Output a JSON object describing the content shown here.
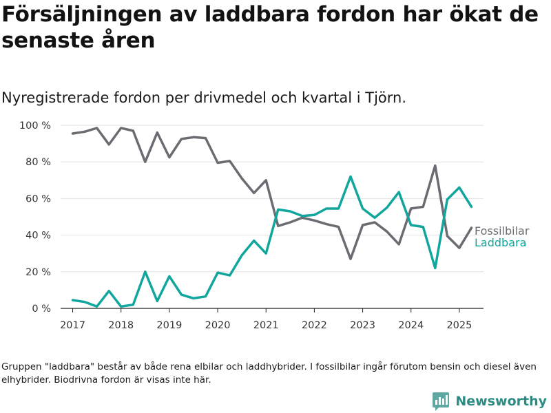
{
  "header": {
    "title": "Försäljningen av laddbara fordon har ökat de senaste åren",
    "subtitle": "Nyregistrerade fordon per drivmedel och kvartal i Tjörn."
  },
  "footer": {
    "note": "Gruppen \"laddbara\" består av både rena elbilar och laddhybrider. I fossilbilar ingår förutom bensin och diesel även elhybrider. Biodrivna fordon är visas inte här.",
    "brand": "Newsworthy",
    "brand_icon": "newsworthy-logo-icon"
  },
  "chart_data": {
    "type": "line",
    "x_unit": "year (quarterly points)",
    "x": [
      2017.0,
      2017.25,
      2017.5,
      2017.75,
      2018.0,
      2018.25,
      2018.5,
      2018.75,
      2019.0,
      2019.25,
      2019.5,
      2019.75,
      2020.0,
      2020.25,
      2020.5,
      2020.75,
      2021.0,
      2021.25,
      2021.5,
      2021.75,
      2022.0,
      2022.25,
      2022.5,
      2022.75,
      2023.0,
      2023.25,
      2023.5,
      2023.75,
      2024.0,
      2024.25,
      2024.5,
      2024.75,
      2025.0,
      2025.25
    ],
    "series": [
      {
        "name": "Fossilbilar",
        "color": "#6b6b72",
        "values": [
          95.5,
          96.5,
          98.5,
          89.5,
          98.5,
          97,
          80,
          96,
          82.5,
          92.5,
          93.5,
          93,
          79.5,
          80.5,
          71,
          63,
          70,
          45,
          47,
          49.5,
          48,
          46,
          44.5,
          27,
          45.5,
          47,
          42,
          35,
          54.5,
          55.5,
          78,
          39.5,
          33,
          44
        ]
      },
      {
        "name": "Laddbara",
        "color": "#11a69d",
        "values": [
          4.5,
          3.5,
          1,
          9.5,
          1,
          2,
          20,
          4,
          17.5,
          7.5,
          5.5,
          6.5,
          19.5,
          18,
          29,
          37,
          30,
          54,
          53,
          50.5,
          51,
          54.5,
          54.5,
          72,
          54.5,
          49.5,
          55,
          63.5,
          45.5,
          44.5,
          22,
          59.5,
          66,
          55.5
        ]
      }
    ],
    "xticks": [
      2017,
      2018,
      2019,
      2020,
      2021,
      2022,
      2023,
      2024,
      2025
    ],
    "xtick_labels": [
      "2017",
      "2018",
      "2019",
      "2020",
      "2021",
      "2022",
      "2023",
      "2024",
      "2025"
    ],
    "yticks": [
      0,
      20,
      40,
      60,
      80,
      100
    ],
    "ytick_labels": [
      "0 %",
      "20 %",
      "40 %",
      "60 %",
      "80 %",
      "100 %"
    ],
    "xlim": [
      2016.75,
      2025.5
    ],
    "ylim": [
      0,
      100
    ],
    "grid": "horizontal",
    "legend": "inline labels at right end of lines"
  }
}
